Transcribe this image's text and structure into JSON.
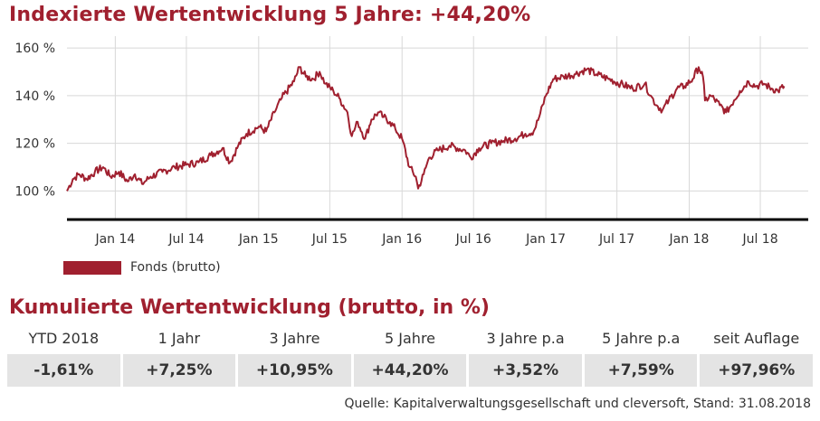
{
  "title": "Indexierte Wertentwicklung 5 Jahre: +44,20%",
  "legend": {
    "label": "Fonds (brutto)"
  },
  "colors": {
    "accent": "#a0202f",
    "cell_bg": "#e4e4e4"
  },
  "table_title": "Kumulierte Wertentwicklung (brutto, in %)",
  "performance": {
    "headers": [
      "YTD 2018",
      "1 Jahr",
      "3 Jahre",
      "5 Jahre",
      "3 Jahre p.a",
      "5 Jahre p.a",
      "seit Auflage"
    ],
    "values": [
      "-1,61%",
      "+7,25%",
      "+10,95%",
      "+44,20%",
      "+3,52%",
      "+7,59%",
      "+97,96%"
    ]
  },
  "source": "Quelle: Kapitalverwaltungsgesellschaft und cleversoft, Stand: 31.08.2018",
  "chart_data": {
    "type": "line",
    "title": "Indexierte Wertentwicklung 5 Jahre: +44,20%",
    "xlabel": "",
    "ylabel": "",
    "ylim": [
      88,
      165
    ],
    "xlim": [
      "2013-08-31",
      "2018-10-31"
    ],
    "yticks": [
      100,
      120,
      140,
      160
    ],
    "ytick_labels": [
      "100 %",
      "120 %",
      "140 %",
      "160 %"
    ],
    "xtick_labels": [
      "Jan 14",
      "Jul 14",
      "Jan 15",
      "Jul 15",
      "Jan 16",
      "Jul 16",
      "Jan 17",
      "Jul 17",
      "Jan 18",
      "Jul 18"
    ],
    "xtick_dates": [
      "2014-01-01",
      "2014-07-01",
      "2015-01-01",
      "2015-07-01",
      "2016-01-01",
      "2016-07-01",
      "2017-01-01",
      "2017-07-01",
      "2018-01-01",
      "2018-07-01"
    ],
    "grid": "horizontal",
    "series": [
      {
        "name": "Fonds (brutto)",
        "color": "#a0202f",
        "points": [
          [
            "2013-08-31",
            100
          ],
          [
            "2013-09-15",
            105
          ],
          [
            "2013-10-01",
            107
          ],
          [
            "2013-10-20",
            105
          ],
          [
            "2013-11-10",
            108
          ],
          [
            "2013-12-01",
            110
          ],
          [
            "2013-12-20",
            106
          ],
          [
            "2014-01-10",
            108
          ],
          [
            "2014-02-01",
            104
          ],
          [
            "2014-02-20",
            107
          ],
          [
            "2014-03-10",
            103
          ],
          [
            "2014-04-01",
            106
          ],
          [
            "2014-05-01",
            108
          ],
          [
            "2014-06-01",
            110
          ],
          [
            "2014-07-01",
            111
          ],
          [
            "2014-08-01",
            112
          ],
          [
            "2014-09-01",
            115
          ],
          [
            "2014-10-01",
            118
          ],
          [
            "2014-10-20",
            112
          ],
          [
            "2014-11-10",
            119
          ],
          [
            "2014-12-01",
            124
          ],
          [
            "2015-01-01",
            127
          ],
          [
            "2015-01-20",
            125
          ],
          [
            "2015-02-10",
            133
          ],
          [
            "2015-03-01",
            139
          ],
          [
            "2015-04-01",
            146
          ],
          [
            "2015-04-15",
            152
          ],
          [
            "2015-05-01",
            148
          ],
          [
            "2015-05-20",
            147
          ],
          [
            "2015-06-05",
            150
          ],
          [
            "2015-06-20",
            145
          ],
          [
            "2015-07-10",
            142
          ],
          [
            "2015-07-25",
            139
          ],
          [
            "2015-08-15",
            133
          ],
          [
            "2015-08-26",
            123
          ],
          [
            "2015-09-10",
            129
          ],
          [
            "2015-09-29",
            122
          ],
          [
            "2015-10-15",
            130
          ],
          [
            "2015-11-01",
            133
          ],
          [
            "2015-11-15",
            131
          ],
          [
            "2015-12-01",
            129
          ],
          [
            "2015-12-15",
            126
          ],
          [
            "2016-01-01",
            122
          ],
          [
            "2016-01-20",
            110
          ],
          [
            "2016-02-05",
            106
          ],
          [
            "2016-02-11",
            101
          ],
          [
            "2016-02-25",
            107
          ],
          [
            "2016-03-10",
            114
          ],
          [
            "2016-04-01",
            117
          ],
          [
            "2016-05-01",
            119
          ],
          [
            "2016-06-10",
            117
          ],
          [
            "2016-06-24",
            114
          ],
          [
            "2016-07-15",
            118
          ],
          [
            "2016-08-15",
            120
          ],
          [
            "2016-09-15",
            121
          ],
          [
            "2016-10-15",
            122
          ],
          [
            "2016-11-10",
            124
          ],
          [
            "2016-12-01",
            125
          ],
          [
            "2016-12-15",
            131
          ],
          [
            "2017-01-01",
            140
          ],
          [
            "2017-01-20",
            147
          ],
          [
            "2017-02-15",
            148
          ],
          [
            "2017-03-15",
            149
          ],
          [
            "2017-04-15",
            151
          ],
          [
            "2017-05-10",
            149
          ],
          [
            "2017-06-10",
            147
          ],
          [
            "2017-07-10",
            145
          ],
          [
            "2017-08-10",
            143
          ],
          [
            "2017-09-10",
            145
          ],
          [
            "2017-09-25",
            140
          ],
          [
            "2017-10-10",
            136
          ],
          [
            "2017-10-25",
            134
          ],
          [
            "2017-11-10",
            138
          ],
          [
            "2017-12-01",
            143
          ],
          [
            "2017-12-20",
            144
          ],
          [
            "2018-01-10",
            147
          ],
          [
            "2018-01-25",
            152
          ],
          [
            "2018-02-05",
            148
          ],
          [
            "2018-02-10",
            138
          ],
          [
            "2018-02-25",
            140
          ],
          [
            "2018-03-20",
            136
          ],
          [
            "2018-04-05",
            133
          ],
          [
            "2018-04-25",
            138
          ],
          [
            "2018-05-10",
            142
          ],
          [
            "2018-06-01",
            146
          ],
          [
            "2018-06-20",
            144
          ],
          [
            "2018-07-10",
            145
          ],
          [
            "2018-07-30",
            143
          ],
          [
            "2018-08-15",
            142
          ],
          [
            "2018-08-31",
            144
          ]
        ]
      }
    ]
  }
}
